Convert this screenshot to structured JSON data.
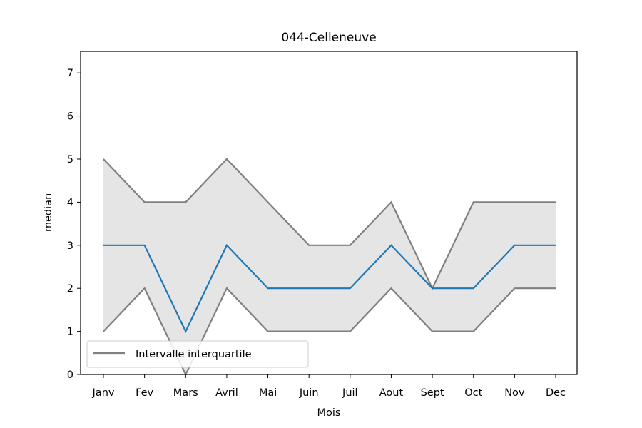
{
  "chart_data": {
    "type": "line",
    "title": "044-Celleneuve",
    "xlabel": "Mois",
    "ylabel": "median",
    "categories": [
      "Janv",
      "Fev",
      "Mars",
      "Avril",
      "Mai",
      "Juin",
      "Juil",
      "Aout",
      "Sept",
      "Oct",
      "Nov",
      "Dec"
    ],
    "ylim": [
      0,
      7.5
    ],
    "yticks": [
      0,
      1,
      2,
      3,
      4,
      5,
      6,
      7
    ],
    "series": [
      {
        "role": "median",
        "color": "#1f77b4",
        "values": [
          3,
          3,
          1,
          3,
          2,
          2,
          2,
          3,
          2,
          2,
          3,
          3
        ]
      },
      {
        "role": "q3",
        "name": "Intervalle interquartile",
        "color": "#808080",
        "values": [
          5,
          4,
          4,
          5,
          4,
          3,
          3,
          4,
          2,
          4,
          4,
          4
        ]
      },
      {
        "role": "q1",
        "color": "#808080",
        "values": [
          1,
          2,
          0,
          2,
          1,
          1,
          1,
          2,
          1,
          1,
          2,
          2
        ]
      }
    ],
    "band": {
      "between": [
        "q1",
        "q3"
      ],
      "color": "#e5e5e5"
    },
    "grid": false,
    "legend": {
      "placement": "lower-left",
      "entries": [
        "Intervalle interquartile"
      ]
    }
  }
}
